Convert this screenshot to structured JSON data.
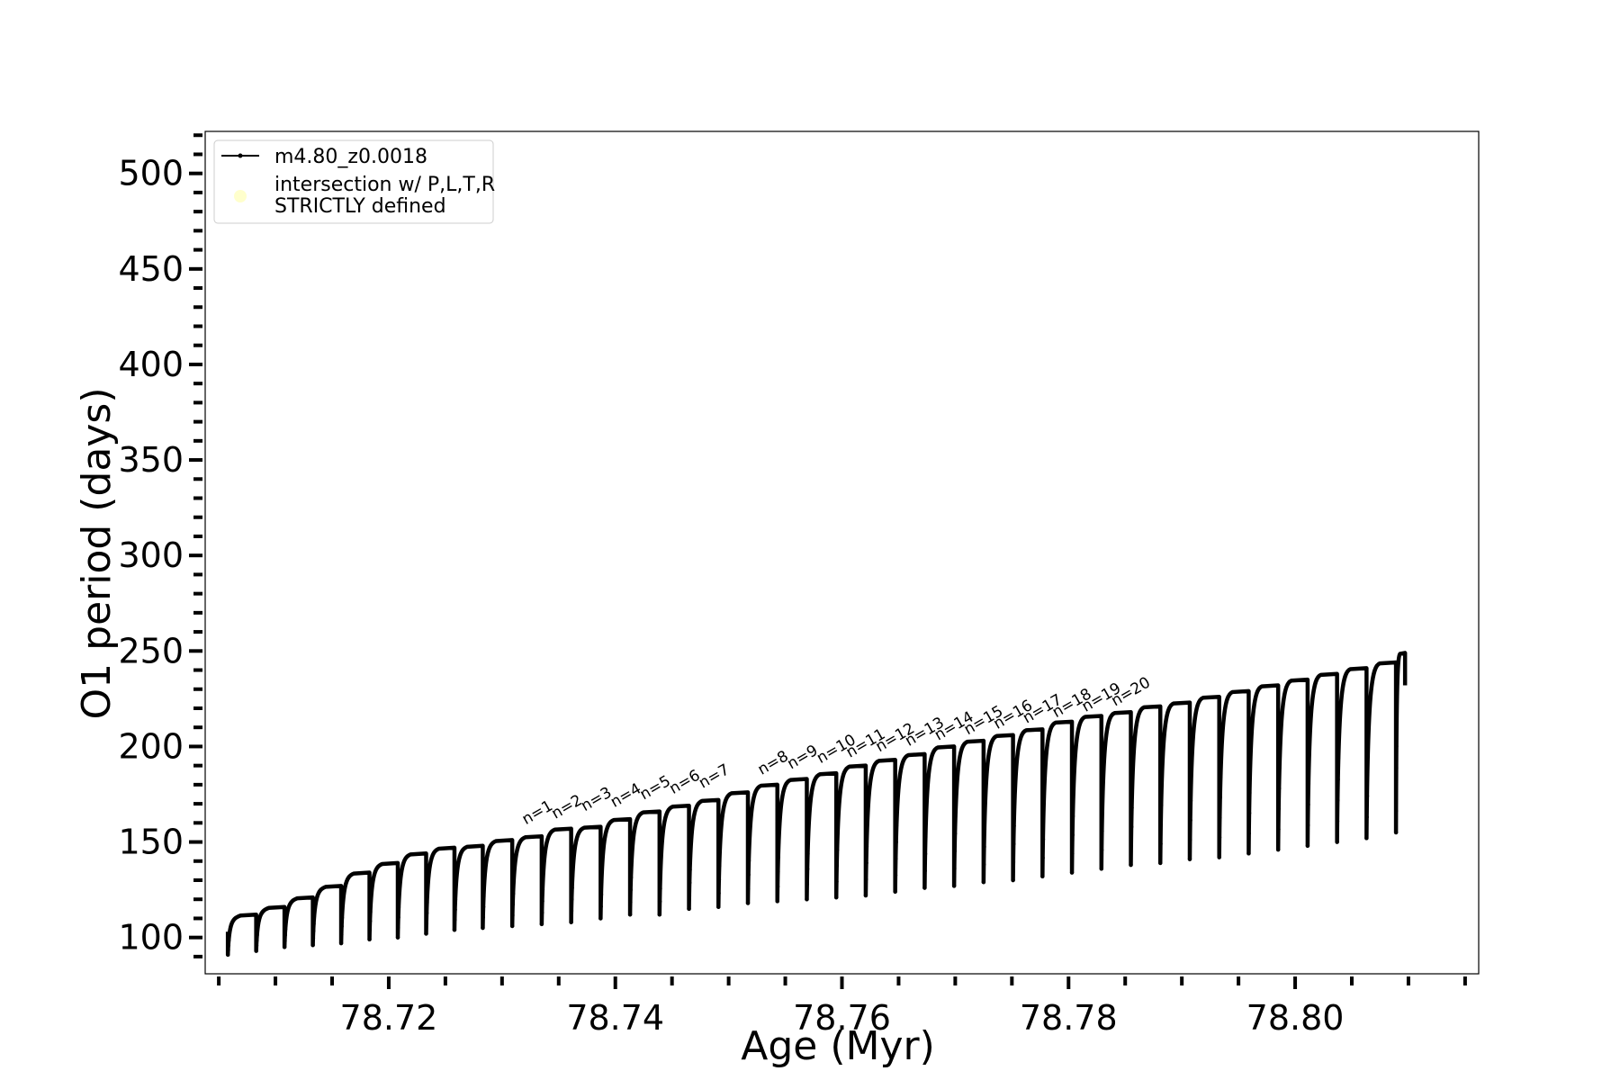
{
  "chart_data": {
    "type": "line",
    "title": "",
    "xlabel": "Age (Myr)",
    "ylabel": "O1 period (days)",
    "xlim": [
      78.7038,
      78.8162
    ],
    "ylim": [
      81,
      522
    ],
    "x_ticks": [
      78.72,
      78.74,
      78.76,
      78.78,
      78.8
    ],
    "x_tick_labels": [
      "78.72",
      "78.74",
      "78.76",
      "78.78",
      "78.80"
    ],
    "x_minor_step": 0.005,
    "y_ticks": [
      100,
      150,
      200,
      250,
      300,
      350,
      400,
      450,
      500
    ],
    "y_tick_labels": [
      "100",
      "150",
      "200",
      "250",
      "300",
      "350",
      "400",
      "450",
      "500"
    ],
    "y_minor_step": 10,
    "grid": false,
    "legend": {
      "position": "top-left",
      "entries": [
        {
          "label": "m4.80_z0.0018",
          "marker": "line",
          "color": "#000000"
        },
        {
          "label_lines": [
            "intersection w/ P,L,T,R",
            "STRICTLY defined"
          ],
          "marker": "circle",
          "color": "#ffffcc"
        }
      ]
    },
    "series": [
      {
        "name": "m4.80_z0.0018",
        "color": "#000000",
        "cycles": [
          {
            "start": 78.7058,
            "min": 91,
            "max": 112
          },
          {
            "start": 78.7083,
            "min": 93,
            "max": 116
          },
          {
            "start": 78.7108,
            "min": 95,
            "max": 121
          },
          {
            "start": 78.7133,
            "min": 96,
            "max": 127
          },
          {
            "start": 78.7158,
            "min": 97,
            "max": 134
          },
          {
            "start": 78.7183,
            "min": 99,
            "max": 139
          },
          {
            "start": 78.7208,
            "min": 100,
            "max": 144
          },
          {
            "start": 78.7233,
            "min": 102,
            "max": 147
          },
          {
            "start": 78.7258,
            "min": 104,
            "max": 148
          },
          {
            "start": 78.7283,
            "min": 105,
            "max": 151
          },
          {
            "start": 78.7309,
            "min": 106,
            "max": 153
          },
          {
            "start": 78.7335,
            "min": 107,
            "max": 157
          },
          {
            "start": 78.7361,
            "min": 108,
            "max": 158
          },
          {
            "start": 78.7387,
            "min": 110,
            "max": 162
          },
          {
            "start": 78.7413,
            "min": 112,
            "max": 166
          },
          {
            "start": 78.7439,
            "min": 112,
            "max": 169
          },
          {
            "start": 78.7465,
            "min": 115,
            "max": 172
          },
          {
            "start": 78.7491,
            "min": 116,
            "max": 176
          },
          {
            "start": 78.7517,
            "min": 118,
            "max": 180
          },
          {
            "start": 78.7543,
            "min": 119,
            "max": 183
          },
          {
            "start": 78.7569,
            "min": 120,
            "max": 186
          },
          {
            "start": 78.7595,
            "min": 121,
            "max": 190
          },
          {
            "start": 78.7621,
            "min": 122,
            "max": 193
          },
          {
            "start": 78.7647,
            "min": 124,
            "max": 196
          },
          {
            "start": 78.7673,
            "min": 126,
            "max": 200
          },
          {
            "start": 78.7699,
            "min": 127,
            "max": 203
          },
          {
            "start": 78.7725,
            "min": 129,
            "max": 206
          },
          {
            "start": 78.7751,
            "min": 130,
            "max": 209
          },
          {
            "start": 78.7777,
            "min": 132,
            "max": 213
          },
          {
            "start": 78.7803,
            "min": 134,
            "max": 216
          },
          {
            "start": 78.7829,
            "min": 136,
            "max": 218
          },
          {
            "start": 78.7855,
            "min": 138,
            "max": 221
          },
          {
            "start": 78.7881,
            "min": 139,
            "max": 223
          },
          {
            "start": 78.7907,
            "min": 141,
            "max": 226
          },
          {
            "start": 78.7933,
            "min": 142,
            "max": 229
          },
          {
            "start": 78.7959,
            "min": 144,
            "max": 232
          },
          {
            "start": 78.7985,
            "min": 146,
            "max": 235
          },
          {
            "start": 78.8011,
            "min": 148,
            "max": 238
          },
          {
            "start": 78.8037,
            "min": 150,
            "max": 241
          },
          {
            "start": 78.8063,
            "min": 152,
            "max": 244
          },
          {
            "start": 78.8089,
            "min": 155,
            "max": 249
          }
        ],
        "end": {
          "x": 78.8097,
          "y": 232
        }
      }
    ],
    "annotations": [
      {
        "text": "n=1",
        "x": 78.7321,
        "y": 159
      },
      {
        "text": "n=2",
        "x": 78.7347,
        "y": 162
      },
      {
        "text": "n=3",
        "x": 78.7373,
        "y": 166
      },
      {
        "text": "n=4",
        "x": 78.7399,
        "y": 168
      },
      {
        "text": "n=5",
        "x": 78.7425,
        "y": 172
      },
      {
        "text": "n=6",
        "x": 78.7451,
        "y": 175
      },
      {
        "text": "n=7",
        "x": 78.7477,
        "y": 178
      },
      {
        "text": "n=8",
        "x": 78.7529,
        "y": 185
      },
      {
        "text": "n=9",
        "x": 78.7555,
        "y": 188
      },
      {
        "text": "n=10",
        "x": 78.7581,
        "y": 191
      },
      {
        "text": "n=11",
        "x": 78.7607,
        "y": 194
      },
      {
        "text": "n=12",
        "x": 78.7633,
        "y": 197
      },
      {
        "text": "n=13",
        "x": 78.7659,
        "y": 200
      },
      {
        "text": "n=14",
        "x": 78.7685,
        "y": 203
      },
      {
        "text": "n=15",
        "x": 78.7711,
        "y": 206
      },
      {
        "text": "n=16",
        "x": 78.7737,
        "y": 209
      },
      {
        "text": "n=17",
        "x": 78.7763,
        "y": 212
      },
      {
        "text": "n=18",
        "x": 78.7789,
        "y": 215
      },
      {
        "text": "n=19",
        "x": 78.7815,
        "y": 218
      },
      {
        "text": "n=20",
        "x": 78.7841,
        "y": 221
      }
    ]
  }
}
